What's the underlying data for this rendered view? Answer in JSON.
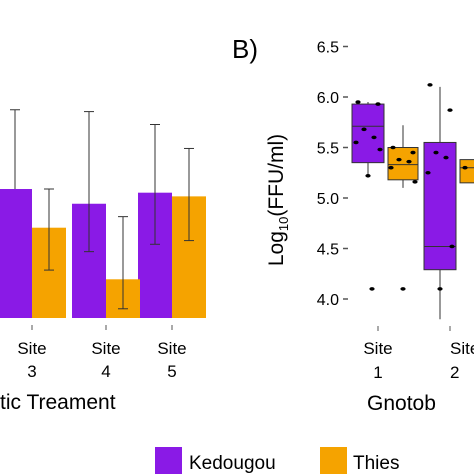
{
  "colors": {
    "Kedougou": "#8A1AE6",
    "Thies": "#F5A300"
  },
  "chart_data": [
    {
      "type": "bar",
      "panel_label": "",
      "categories": [
        "Site\n3",
        "Site\n4",
        "Site\n5"
      ],
      "xlabel": "tic Treament",
      "series": [
        {
          "name": "Kedougou",
          "values": [
            0.7,
            0.62,
            0.68
          ],
          "err_low": [
            null,
            0.36,
            0.4
          ],
          "err_high": [
            1.13,
            1.12,
            1.05
          ]
        },
        {
          "name": "Thies",
          "values": [
            0.49,
            0.21,
            0.66
          ],
          "err_low": [
            0.26,
            0.05,
            0.42
          ],
          "err_high": [
            0.7,
            0.55,
            0.92
          ]
        }
      ],
      "ylim": [
        0,
        1.4
      ]
    },
    {
      "type": "box",
      "panel_label": "B)",
      "categories": [
        "Site\n1",
        "Site\n2"
      ],
      "ylabel_main": "Log",
      "ylabel_sub": "10",
      "ylabel_rest": "(FFU/ml)",
      "xlabel": "Gnotob",
      "yticks": [
        "4.0",
        "4.5",
        "5.0",
        "5.5",
        "6.0",
        "6.5"
      ],
      "ylim": [
        3.85,
        6.6
      ],
      "boxes": [
        {
          "category": 0,
          "series": "Kedougou",
          "q1": 5.35,
          "median": 5.71,
          "q3": 5.93,
          "whisker_low": 5.22,
          "whisker_high": 5.95,
          "points": [
            5.95,
            5.93,
            5.68,
            5.6,
            5.55,
            5.48,
            5.22,
            4.1
          ]
        },
        {
          "category": 0,
          "series": "Thies",
          "q1": 5.18,
          "median": 5.33,
          "q3": 5.5,
          "whisker_low": 5.1,
          "whisker_high": 5.72,
          "points": [
            5.5,
            5.45,
            5.38,
            5.36,
            5.3,
            5.16,
            4.1
          ]
        },
        {
          "category": 1,
          "series": "Kedougou",
          "q1": 4.29,
          "median": 4.52,
          "q3": 5.55,
          "whisker_low": 3.8,
          "whisker_high": 6.1,
          "points": [
            6.12,
            5.87,
            5.45,
            5.4,
            5.25,
            4.52,
            4.1
          ]
        },
        {
          "category": 1,
          "series": "Thies",
          "q1": 5.15,
          "median": 5.3,
          "q3": 5.38,
          "whisker_low": 5.1,
          "whisker_high": 5.45,
          "points": [
            5.3
          ]
        }
      ]
    }
  ],
  "legend": [
    {
      "name": "Kedougou",
      "label": "Kedougou"
    },
    {
      "name": "Thies",
      "label": "Thies"
    }
  ]
}
